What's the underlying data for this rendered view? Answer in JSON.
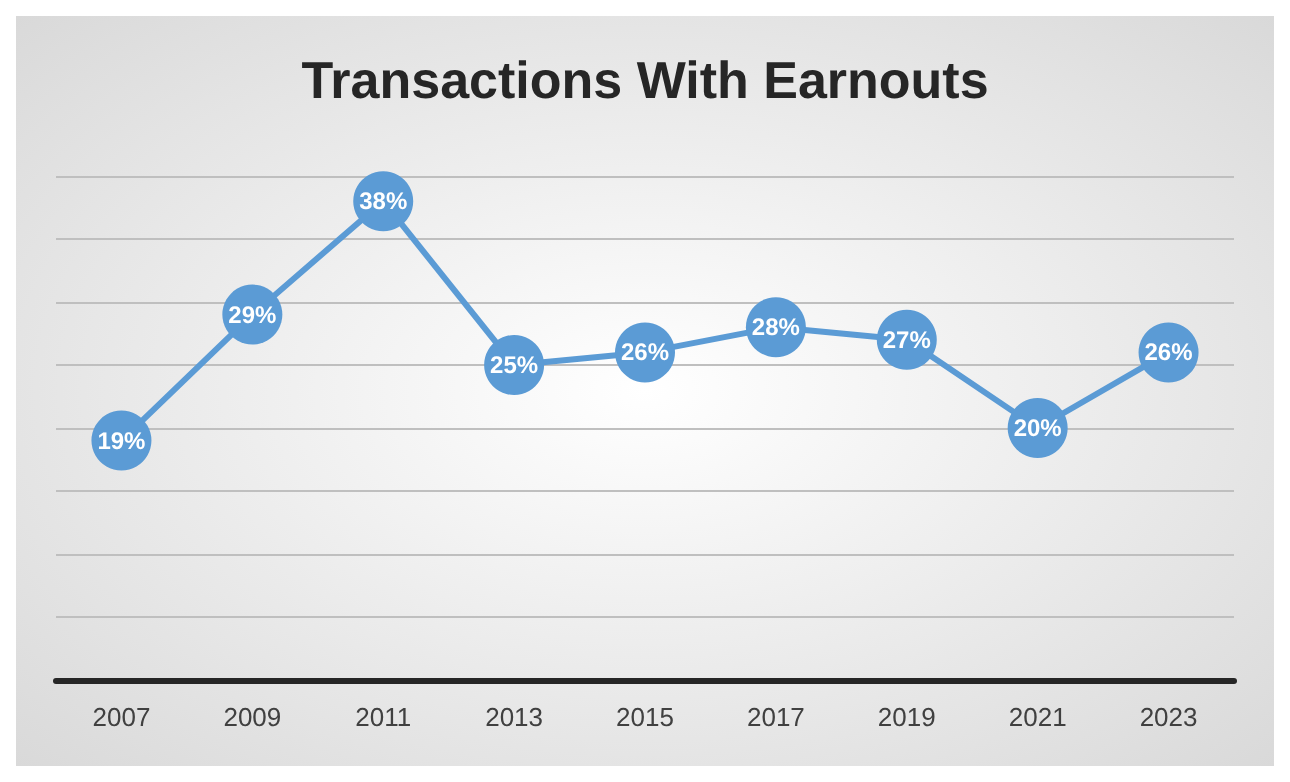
{
  "chart_data": {
    "type": "line",
    "title": "Transactions With Earnouts",
    "categories": [
      "2007",
      "2009",
      "2011",
      "2013",
      "2015",
      "2017",
      "2019",
      "2021",
      "2023"
    ],
    "series": [
      {
        "color": "#5b9bd5",
        "values": [
          19,
          29,
          38,
          25,
          26,
          28,
          27,
          20,
          26
        ],
        "value_labels": [
          "19%",
          "29%",
          "38%",
          "25%",
          "26%",
          "28%",
          "27%",
          "20%",
          "26%"
        ]
      }
    ],
    "tick_labels": "x",
    "grid": "y",
    "marker": "circle",
    "line_style": "solid"
  }
}
